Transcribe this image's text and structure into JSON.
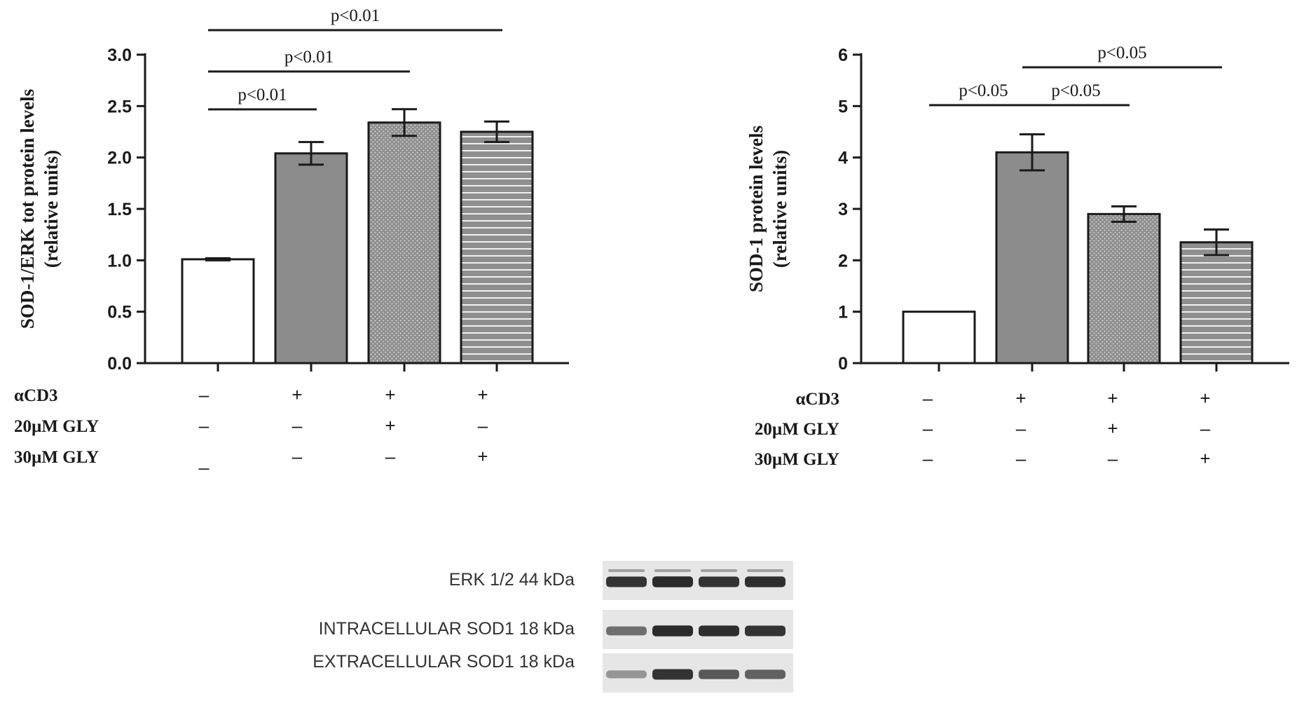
{
  "chart_data": [
    {
      "type": "bar",
      "ylabel_line1": "SOD-1/ERK tot protein levels",
      "ylabel_line2": "(relative units)",
      "ylim": [
        0,
        3.0
      ],
      "yticks": [
        "0.0",
        "0.5",
        "1.0",
        "1.5",
        "2.0",
        "2.5",
        "3.0"
      ],
      "ytick_values": [
        0,
        0.5,
        1.0,
        1.5,
        2.0,
        2.5,
        3.0
      ],
      "values": [
        1.01,
        2.04,
        2.34,
        2.25
      ],
      "errors": [
        0.01,
        0.11,
        0.13,
        0.1
      ],
      "fills": [
        "white",
        "solid-gray",
        "dotted-gray",
        "striped-gray"
      ],
      "significance": [
        {
          "from": 0,
          "to": 1,
          "label": "p<0.01",
          "level": 1
        },
        {
          "from": 0,
          "to": 2,
          "label": "p<0.01",
          "level": 2
        },
        {
          "from": 0,
          "to": 3,
          "label": "p<0.01",
          "level": 3
        }
      ],
      "treatments": [
        {
          "label": "αCD3",
          "signs": [
            "–",
            "+",
            "+",
            "+"
          ]
        },
        {
          "label": "20µM GLY",
          "signs": [
            "–",
            "–",
            "+",
            "–"
          ]
        },
        {
          "label": "30µM GLY",
          "signs": [
            "_",
            "–",
            "–",
            "+"
          ]
        }
      ]
    },
    {
      "type": "bar",
      "ylabel_line1": "SOD-1 protein levels",
      "ylabel_line2": "(relative units)",
      "ylim": [
        0,
        6
      ],
      "yticks": [
        "0",
        "1",
        "2",
        "3",
        "4",
        "5",
        "6"
      ],
      "ytick_values": [
        0,
        1,
        2,
        3,
        4,
        5,
        6
      ],
      "values": [
        1.0,
        4.1,
        2.9,
        2.35
      ],
      "errors": [
        0.0,
        0.35,
        0.15,
        0.25
      ],
      "fills": [
        "white",
        "solid-gray",
        "dotted-gray",
        "striped-gray"
      ],
      "significance": [
        {
          "from": 0,
          "to": 1,
          "label": "p<0.05",
          "level": 1
        },
        {
          "from": 1,
          "to": 2,
          "label": "p<0.05",
          "level": 1
        },
        {
          "from": 1,
          "to": 3,
          "label": "p<0.05",
          "level": 2
        }
      ],
      "treatments": [
        {
          "label": "αCD3",
          "signs": [
            "–",
            "+",
            "+",
            "+"
          ]
        },
        {
          "label": "20µM GLY",
          "signs": [
            "–",
            "–",
            "+",
            "–"
          ]
        },
        {
          "label": "30µM GLY",
          "signs": [
            "–",
            "–",
            "–",
            "+"
          ]
        }
      ]
    }
  ],
  "blot": {
    "lanes": 4,
    "rows": [
      {
        "label": "ERK 1/2 44 kDa",
        "intensities": [
          0.85,
          0.9,
          0.85,
          0.88
        ]
      },
      {
        "label": "INTRACELLULAR SOD1 18 kDa",
        "intensities": [
          0.45,
          0.9,
          0.88,
          0.85
        ]
      },
      {
        "label": "EXTRACELLULAR SOD1 18 kDa",
        "intensities": [
          0.2,
          0.85,
          0.6,
          0.55
        ]
      }
    ]
  },
  "colors": {
    "bar_gray": "#8c8c8c",
    "axis": "#1a1a1a",
    "band": "#1c1c1c",
    "blot_bg": "#e6e6e6"
  }
}
